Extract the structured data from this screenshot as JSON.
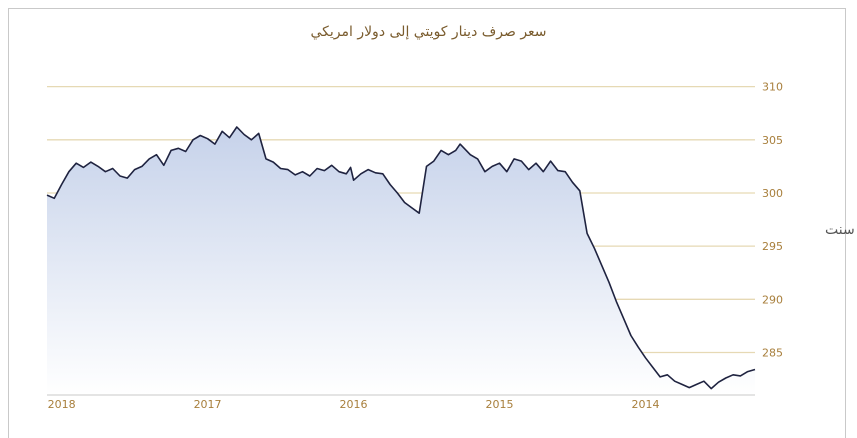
{
  "chart_data": {
    "type": "area",
    "title": "سعر صرف دينار كويتي إلى دولار امريكي",
    "xlabel": "",
    "ylabel": "سنت",
    "ylim": [
      281,
      311
    ],
    "x_reversed": true,
    "yticks": [
      "310",
      "305",
      "300",
      "295",
      "290",
      "285"
    ],
    "ytick_values": [
      310,
      305,
      300,
      295,
      290,
      285
    ],
    "xticks": [
      "2018",
      "2017",
      "2016",
      "2015",
      "2014"
    ],
    "xtick_values": [
      2018.0,
      2017.0,
      2016.0,
      2015.0,
      2014.0
    ],
    "x_range": [
      2018.1,
      2013.25
    ],
    "grid": true,
    "line_color": "#1f2340",
    "fill_top_color": "#c6d2ea",
    "fill_bottom_color": "#ffffff",
    "grid_color": "#e6d9b4",
    "tick_color": "#a87f3c",
    "series": [
      {
        "x": [
          2018.1,
          2018.05,
          2018.0,
          2017.95,
          2017.9,
          2017.85,
          2017.8,
          2017.75,
          2017.7,
          2017.65,
          2017.6,
          2017.55,
          2017.5,
          2017.45,
          2017.4,
          2017.35,
          2017.3,
          2017.25,
          2017.2,
          2017.15,
          2017.1,
          2017.05,
          2017.0,
          2016.95,
          2016.9,
          2016.85,
          2016.8,
          2016.75,
          2016.7,
          2016.65,
          2016.6,
          2016.55,
          2016.5,
          2016.45,
          2016.4,
          2016.35,
          2016.3,
          2016.25,
          2016.2,
          2016.15,
          2016.1,
          2016.05,
          2016.02,
          2016.0,
          2015.95,
          2015.9,
          2015.85,
          2015.8,
          2015.75,
          2015.7,
          2015.65,
          2015.6,
          2015.55,
          2015.5,
          2015.45,
          2015.4,
          2015.35,
          2015.3,
          2015.27,
          2015.2,
          2015.15,
          2015.1,
          2015.05,
          2015.0,
          2014.95,
          2014.9,
          2014.85,
          2014.8,
          2014.75,
          2014.7,
          2014.65,
          2014.6,
          2014.55,
          2014.5,
          2014.45,
          2014.4,
          2014.35,
          2014.3,
          2014.25,
          2014.2,
          2014.15,
          2014.1,
          2014.05,
          2014.0,
          2013.95,
          2013.9,
          2013.85,
          2013.8,
          2013.75,
          2013.7,
          2013.65,
          2013.6,
          2013.55,
          2013.5,
          2013.45,
          2013.4,
          2013.35,
          2013.3,
          2013.25
        ],
        "y": [
          299.8,
          299.5,
          300.8,
          302.0,
          302.8,
          302.4,
          302.9,
          302.5,
          302.0,
          302.3,
          301.6,
          301.4,
          302.2,
          302.5,
          303.2,
          303.6,
          302.6,
          304.0,
          304.2,
          303.9,
          305.0,
          305.4,
          305.1,
          304.6,
          305.8,
          305.2,
          306.2,
          305.5,
          305.0,
          305.6,
          303.2,
          302.9,
          302.3,
          302.2,
          301.7,
          302.0,
          301.6,
          302.3,
          302.1,
          302.6,
          302.0,
          301.8,
          302.4,
          301.2,
          301.8,
          302.2,
          301.9,
          301.8,
          300.8,
          300.0,
          299.1,
          298.6,
          298.1,
          302.5,
          303.0,
          304.0,
          303.6,
          304.0,
          304.6,
          303.6,
          303.2,
          302.0,
          302.5,
          302.8,
          302.0,
          303.2,
          303.0,
          302.2,
          302.8,
          302.0,
          303.0,
          302.1,
          302.0,
          301.0,
          300.2,
          296.2,
          294.8,
          293.2,
          291.6,
          289.8,
          288.2,
          286.6,
          285.5,
          284.5,
          283.6,
          282.7,
          282.9,
          282.3,
          282.0,
          281.7,
          282.0,
          282.3,
          281.6,
          282.2,
          282.6,
          282.9,
          282.8,
          283.2,
          283.4
        ]
      }
    ]
  }
}
